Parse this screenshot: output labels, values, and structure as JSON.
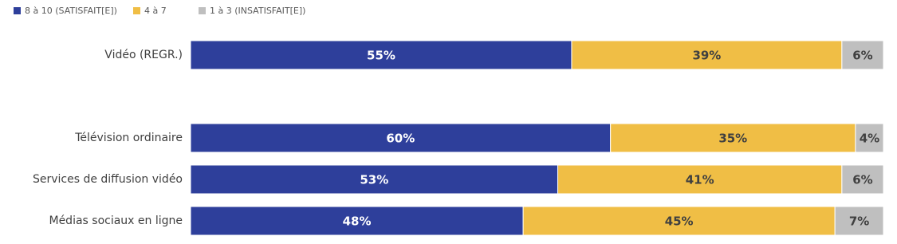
{
  "chart_data": {
    "type": "stacked-bar-horizontal",
    "categories": [
      "Vidéo (REGR.)",
      "Télévision ordinaire",
      "Services de diffusion vidéo",
      "Médias sociaux en ligne"
    ],
    "series": [
      {
        "name": "8 à 10 (SATISFAIT[E])",
        "color": "#2e3f9b",
        "values": [
          55,
          60,
          53,
          48
        ],
        "value_labels": [
          "55%",
          "60%",
          "53%",
          "48%"
        ]
      },
      {
        "name": "4 à 7",
        "color": "#f0be45",
        "values": [
          39,
          35,
          41,
          45
        ],
        "value_labels": [
          "39%",
          "35%",
          "41%",
          "45%"
        ]
      },
      {
        "name": "1 à 3 (INSATISFAIT[E])",
        "color": "#bfbfbf",
        "values": [
          6,
          4,
          6,
          7
        ],
        "value_labels": [
          "6%",
          "4%",
          "6%",
          "7%"
        ]
      }
    ],
    "legend": "top-left"
  }
}
